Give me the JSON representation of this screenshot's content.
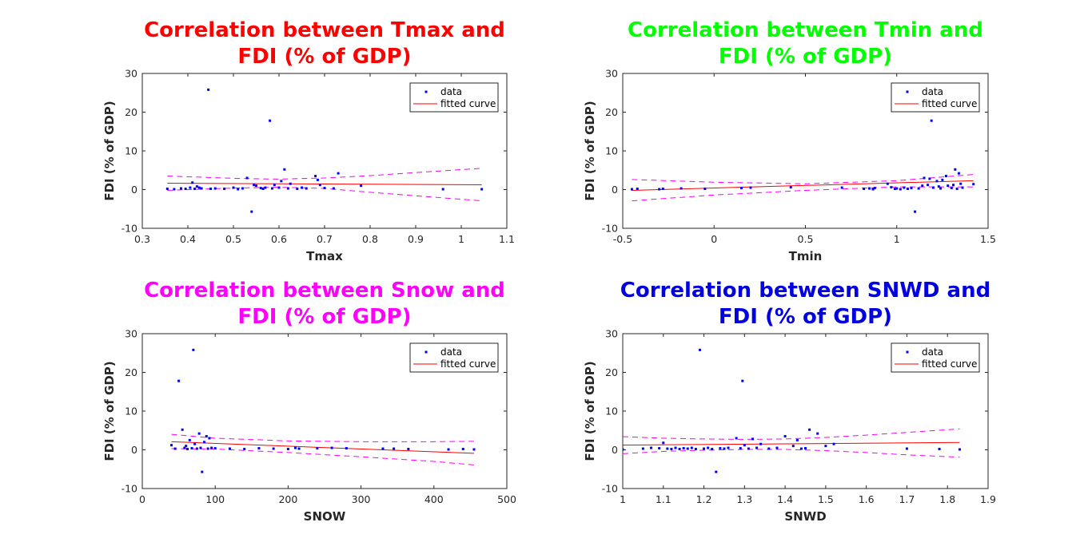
{
  "chart_data": [
    {
      "type": "scatter",
      "title_lines": [
        "Correlation between Tmax and",
        "FDI (% of GDP)"
      ],
      "title_color": "#ff0000",
      "xlabel": "Tmax",
      "ylabel": "FDI (% of GDP)",
      "xlim": [
        0.3,
        1.1
      ],
      "ylim": [
        -10,
        30
      ],
      "xticks": [
        0.3,
        0.4,
        0.5,
        0.6,
        0.7,
        0.8,
        0.9,
        1.0,
        1.1
      ],
      "xtick_labels": [
        "0.3",
        "0.4",
        "0.5",
        "0.6",
        "0.7",
        "0.8",
        "0.9",
        "1",
        "1.1"
      ],
      "yticks": [
        -10,
        0,
        10,
        20,
        30
      ],
      "ytick_labels": [
        "-10",
        "0",
        "10",
        "20",
        "30"
      ],
      "legend": [
        "data",
        "fitted curve"
      ],
      "legend_position": "top-right",
      "data_points": [
        [
          0.355,
          0.2
        ],
        [
          0.37,
          0.1
        ],
        [
          0.385,
          0.3
        ],
        [
          0.395,
          0.2
        ],
        [
          0.405,
          0.5
        ],
        [
          0.41,
          1.8
        ],
        [
          0.415,
          0.2
        ],
        [
          0.42,
          0.8
        ],
        [
          0.425,
          0.5
        ],
        [
          0.43,
          0.3
        ],
        [
          0.445,
          25.8
        ],
        [
          0.45,
          0.2
        ],
        [
          0.46,
          0.3
        ],
        [
          0.48,
          0.2
        ],
        [
          0.5,
          0.5
        ],
        [
          0.51,
          0.1
        ],
        [
          0.52,
          0.3
        ],
        [
          0.53,
          3.0
        ],
        [
          0.54,
          -5.7
        ],
        [
          0.545,
          1.2
        ],
        [
          0.55,
          1.0
        ],
        [
          0.56,
          0.4
        ],
        [
          0.565,
          0.2
        ],
        [
          0.57,
          0.5
        ],
        [
          0.58,
          17.8
        ],
        [
          0.585,
          0.3
        ],
        [
          0.59,
          1.2
        ],
        [
          0.6,
          0.5
        ],
        [
          0.605,
          2.2
        ],
        [
          0.612,
          5.2
        ],
        [
          0.62,
          0.3
        ],
        [
          0.625,
          1.5
        ],
        [
          0.64,
          0.2
        ],
        [
          0.65,
          0.5
        ],
        [
          0.66,
          0.3
        ],
        [
          0.68,
          3.5
        ],
        [
          0.685,
          2.5
        ],
        [
          0.69,
          1.2
        ],
        [
          0.7,
          0.4
        ],
        [
          0.72,
          0.3
        ],
        [
          0.73,
          4.2
        ],
        [
          0.78,
          1.0
        ],
        [
          0.96,
          0.1
        ],
        [
          1.045,
          0.1
        ]
      ],
      "fit": [
        [
          0.355,
          1.65
        ],
        [
          1.045,
          1.25
        ]
      ],
      "bounds": {
        "x": [
          0.355,
          0.5,
          0.6,
          0.7,
          0.8,
          0.9,
          1.045
        ],
        "upper": [
          3.5,
          2.9,
          2.7,
          3.0,
          3.6,
          4.4,
          5.5
        ],
        "lower": [
          -0.2,
          0.4,
          0.6,
          0.3,
          -0.7,
          -1.6,
          -2.9
        ]
      }
    },
    {
      "type": "scatter",
      "title_lines": [
        "Correlation between Tmin and",
        "FDI (% of GDP)"
      ],
      "title_color": "#00ff00",
      "xlabel": "Tmin",
      "ylabel": "FDI (% of GDP)",
      "xlim": [
        -0.5,
        1.5
      ],
      "ylim": [
        -10,
        30
      ],
      "xticks": [
        -0.5,
        0,
        0.5,
        1,
        1.5
      ],
      "xtick_labels": [
        "-0.5",
        "0",
        "0.5",
        "1",
        "1.5"
      ],
      "yticks": [
        -10,
        0,
        10,
        20,
        30
      ],
      "ytick_labels": [
        "-10",
        "0",
        "10",
        "20",
        "30"
      ],
      "legend": [
        "data",
        "fitted curve"
      ],
      "legend_position": "top-right",
      "data_points": [
        [
          -0.45,
          0.1
        ],
        [
          -0.42,
          0.2
        ],
        [
          -0.3,
          0.1
        ],
        [
          -0.28,
          0.2
        ],
        [
          -0.18,
          0.3
        ],
        [
          -0.05,
          0.2
        ],
        [
          0.15,
          0.4
        ],
        [
          0.2,
          0.5
        ],
        [
          0.42,
          0.6
        ],
        [
          0.7,
          0.5
        ],
        [
          0.82,
          0.2
        ],
        [
          0.85,
          0.3
        ],
        [
          0.87,
          0.1
        ],
        [
          0.88,
          0.4
        ],
        [
          0.95,
          1.5
        ],
        [
          0.97,
          0.6
        ],
        [
          0.99,
          0.2
        ],
        [
          1.0,
          0.3
        ],
        [
          1.02,
          0.1
        ],
        [
          1.04,
          0.5
        ],
        [
          1.06,
          0.2
        ],
        [
          1.08,
          0.4
        ],
        [
          1.1,
          -5.7
        ],
        [
          1.12,
          0.3
        ],
        [
          1.14,
          1.0
        ],
        [
          1.15,
          3.0
        ],
        [
          1.17,
          1.2
        ],
        [
          1.18,
          2.8
        ],
        [
          1.19,
          17.8
        ],
        [
          1.2,
          0.5
        ],
        [
          1.22,
          2.2
        ],
        [
          1.23,
          0.8
        ],
        [
          1.24,
          0.3
        ],
        [
          1.25,
          2.5
        ],
        [
          1.27,
          3.5
        ],
        [
          1.28,
          1.0
        ],
        [
          1.3,
          0.4
        ],
        [
          1.31,
          1.2
        ],
        [
          1.32,
          5.2
        ],
        [
          1.33,
          0.2
        ],
        [
          1.34,
          4.2
        ],
        [
          1.35,
          1.5
        ],
        [
          1.36,
          0.5
        ],
        [
          1.42,
          1.4
        ]
      ],
      "fit": [
        [
          -0.45,
          -0.2
        ],
        [
          1.42,
          2.3
        ]
      ],
      "bounds": {
        "x": [
          -0.45,
          0,
          0.5,
          1.0,
          1.42
        ],
        "upper": [
          2.6,
          1.9,
          1.5,
          2.3,
          3.9
        ],
        "lower": [
          -2.9,
          -1.4,
          -0.2,
          0.7,
          0.7
        ]
      }
    },
    {
      "type": "scatter",
      "title_lines": [
        "Correlation between Snow and",
        "FDI (% of GDP)"
      ],
      "title_color": "#ff00ff",
      "xlabel": "SNOW",
      "ylabel": "FDI (% of GDP)",
      "xlim": [
        0,
        500
      ],
      "ylim": [
        -10,
        30
      ],
      "xticks": [
        0,
        100,
        200,
        300,
        400,
        500
      ],
      "xtick_labels": [
        "0",
        "100",
        "200",
        "300",
        "400",
        "500"
      ],
      "yticks": [
        -10,
        0,
        10,
        20,
        30
      ],
      "ytick_labels": [
        "-10",
        "0",
        "10",
        "20",
        "30"
      ],
      "legend": [
        "data",
        "fitted curve"
      ],
      "legend_position": "top-right",
      "data_points": [
        [
          40,
          1.2
        ],
        [
          45,
          0.3
        ],
        [
          50,
          17.8
        ],
        [
          55,
          5.2
        ],
        [
          58,
          0.5
        ],
        [
          60,
          1.0
        ],
        [
          62,
          0.2
        ],
        [
          65,
          2.5
        ],
        [
          68,
          0.4
        ],
        [
          70,
          25.8
        ],
        [
          72,
          1.5
        ],
        [
          75,
          0.3
        ],
        [
          78,
          4.2
        ],
        [
          80,
          0.5
        ],
        [
          82,
          -5.7
        ],
        [
          85,
          2.0
        ],
        [
          88,
          3.5
        ],
        [
          90,
          0.3
        ],
        [
          92,
          3.0
        ],
        [
          95,
          0.5
        ],
        [
          100,
          0.4
        ],
        [
          120,
          0.3
        ],
        [
          140,
          0.2
        ],
        [
          160,
          0.4
        ],
        [
          180,
          0.3
        ],
        [
          200,
          0.2
        ],
        [
          210,
          0.5
        ],
        [
          215,
          0.3
        ],
        [
          240,
          0.4
        ],
        [
          260,
          0.5
        ],
        [
          280,
          0.4
        ],
        [
          330,
          0.3
        ],
        [
          345,
          0.3
        ],
        [
          365,
          0.2
        ],
        [
          420,
          0.1
        ],
        [
          440,
          0.2
        ],
        [
          455,
          0.1
        ]
      ],
      "fit": [
        [
          40,
          2.1
        ],
        [
          455,
          -0.9
        ]
      ],
      "bounds": {
        "x": [
          40,
          100,
          200,
          300,
          400,
          455
        ],
        "upper": [
          4.0,
          3.0,
          2.3,
          2.1,
          2.1,
          2.2
        ],
        "lower": [
          0.3,
          0.2,
          -0.7,
          -1.8,
          -3.0,
          -3.9
        ]
      }
    },
    {
      "type": "scatter",
      "title_lines": [
        "Correlation between SNWD and",
        "FDI (% of GDP)"
      ],
      "title_color": "#0000e0",
      "xlabel": "SNWD",
      "ylabel": "FDI (% of GDP)",
      "xlim": [
        1,
        1.9
      ],
      "ylim": [
        -10,
        30
      ],
      "xticks": [
        1,
        1.1,
        1.2,
        1.3,
        1.4,
        1.5,
        1.6,
        1.7,
        1.8,
        1.9
      ],
      "xtick_labels": [
        "1",
        "1.1",
        "1.2",
        "1.3",
        "1.4",
        "1.5",
        "1.6",
        "1.7",
        "1.8",
        "1.9"
      ],
      "yticks": [
        -10,
        0,
        10,
        20,
        30
      ],
      "ytick_labels": [
        "-10",
        "0",
        "10",
        "20",
        "30"
      ],
      "legend": [
        "data",
        "fitted curve"
      ],
      "legend_position": "top-right",
      "data_points": [
        [
          1.0,
          0.1
        ],
        [
          1.05,
          0.3
        ],
        [
          1.07,
          0.5
        ],
        [
          1.09,
          0.4
        ],
        [
          1.1,
          1.8
        ],
        [
          1.11,
          0.3
        ],
        [
          1.12,
          0.2
        ],
        [
          1.13,
          0.5
        ],
        [
          1.14,
          0.2
        ],
        [
          1.15,
          0.4
        ],
        [
          1.16,
          0.3
        ],
        [
          1.17,
          0.5
        ],
        [
          1.18,
          0.2
        ],
        [
          1.19,
          25.8
        ],
        [
          1.2,
          0.3
        ],
        [
          1.21,
          0.5
        ],
        [
          1.22,
          0.2
        ],
        [
          1.23,
          -5.7
        ],
        [
          1.24,
          0.4
        ],
        [
          1.25,
          0.3
        ],
        [
          1.26,
          0.5
        ],
        [
          1.28,
          3.0
        ],
        [
          1.29,
          0.4
        ],
        [
          1.295,
          17.8
        ],
        [
          1.3,
          1.2
        ],
        [
          1.31,
          0.3
        ],
        [
          1.32,
          2.8
        ],
        [
          1.33,
          0.5
        ],
        [
          1.34,
          1.5
        ],
        [
          1.36,
          0.3
        ],
        [
          1.38,
          0.5
        ],
        [
          1.4,
          3.5
        ],
        [
          1.42,
          1.0
        ],
        [
          1.43,
          2.5
        ],
        [
          1.44,
          0.3
        ],
        [
          1.45,
          0.4
        ],
        [
          1.46,
          5.2
        ],
        [
          1.48,
          4.2
        ],
        [
          1.5,
          1.0
        ],
        [
          1.52,
          1.5
        ],
        [
          1.7,
          0.3
        ],
        [
          1.78,
          0.2
        ],
        [
          1.83,
          0.1
        ]
      ],
      "fit": [
        [
          1.0,
          1.2
        ],
        [
          1.83,
          1.9
        ]
      ],
      "bounds": {
        "x": [
          1.0,
          1.1,
          1.2,
          1.3,
          1.4,
          1.5,
          1.6,
          1.7,
          1.83
        ],
        "upper": [
          3.4,
          3.0,
          2.8,
          2.7,
          2.8,
          3.2,
          3.8,
          4.5,
          5.4
        ],
        "lower": [
          -1.0,
          -0.4,
          -0.1,
          0.1,
          0.1,
          -0.2,
          -0.7,
          -1.3,
          -1.9
        ]
      }
    }
  ]
}
